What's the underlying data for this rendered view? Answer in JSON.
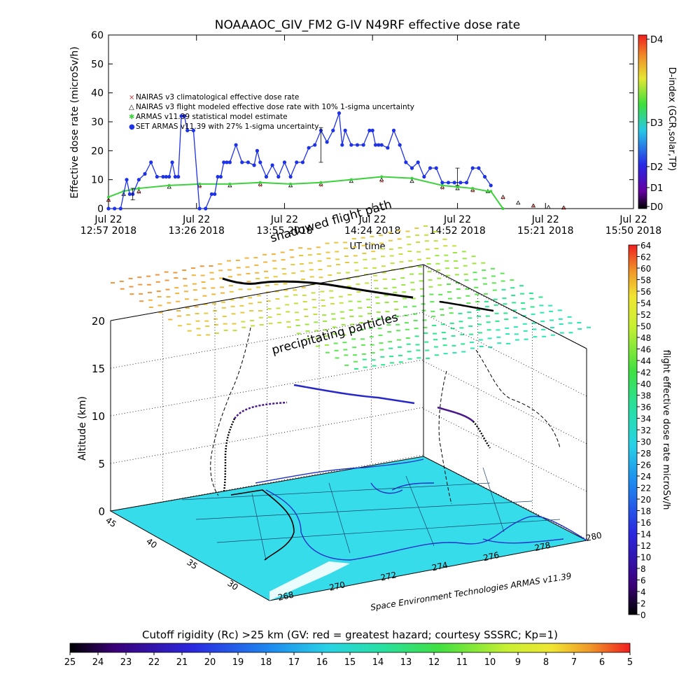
{
  "colors": {
    "nairas_clim": "#c83232",
    "nairas_model": "#000000",
    "armas_stat": "#3cd23c",
    "armas": "#1e32e6",
    "globe": "#37dceb"
  },
  "chart_data": [
    {
      "type": "line",
      "title": "NOAAAOC_GIV_FM2 G-IV   N49RF  effective dose rate",
      "ylabel": "Effective dose rate (microSv/h)",
      "xlabel": "UT time",
      "ylim": [
        0,
        60
      ],
      "yticks": [
        "0",
        "10",
        "20",
        "30",
        "40",
        "50",
        "60"
      ],
      "xlim_minutes": [
        0,
        173
      ],
      "xticks": [
        {
          "m": 0,
          "date": "Jul 22",
          "time": "12:57  2018"
        },
        {
          "m": 29,
          "date": "Jul 22",
          "time": "13:26  2018"
        },
        {
          "m": 58,
          "date": "Jul 22",
          "time": "13:55  2018"
        },
        {
          "m": 87,
          "date": "Jul 22",
          "time": "14:24  2018"
        },
        {
          "m": 115,
          "date": "Jul 22",
          "time": "14:52  2018"
        },
        {
          "m": 144,
          "date": "Jul 22",
          "time": "15:21  2018"
        },
        {
          "m": 173,
          "date": "Jul 22",
          "time": "15:50  2018"
        }
      ],
      "legend": [
        {
          "marker": "×",
          "text": "NAIRAS v3 climatological effective dose rate"
        },
        {
          "marker": "△",
          "text": "NAIRAS v3 flight modeled effective dose rate with 10% 1-sigma uncertainty"
        },
        {
          "marker": "✱",
          "text": "ARMAS v11.39 statistical model estimate"
        },
        {
          "marker": "●",
          "text": "SET ARMAS v11.39 with 27% 1-sigma uncertainty"
        }
      ],
      "right_axis": {
        "label": "D-index (GCR,solar,TP)",
        "ticks": [
          "D4",
          "D3",
          "D2",
          "D1",
          "D0"
        ]
      },
      "series": [
        {
          "name": "SET ARMAS v11.39 with 27% 1-sigma uncertainty",
          "x": [
            0,
            2,
            4,
            6,
            7,
            8,
            10,
            12,
            14,
            16,
            18,
            19,
            20,
            21,
            22,
            23,
            24,
            25,
            26,
            28,
            30,
            32,
            34,
            35,
            36,
            37,
            38,
            39,
            40,
            42,
            44,
            46,
            48,
            49,
            50,
            52,
            54,
            56,
            58,
            60,
            62,
            64,
            66,
            68,
            70,
            72,
            74,
            76,
            77,
            78,
            80,
            82,
            84,
            86,
            87,
            88,
            89,
            90,
            92,
            94,
            96,
            98,
            100,
            102,
            104,
            106,
            108,
            110,
            112,
            114,
            116,
            118,
            120,
            122,
            124,
            126
          ],
          "y": [
            0,
            0,
            0,
            10,
            5,
            5,
            10,
            12,
            16,
            11,
            11,
            11,
            11,
            16,
            11,
            11,
            32,
            32,
            27,
            27,
            0,
            0,
            5,
            5,
            11,
            11,
            16,
            16,
            16,
            22,
            16,
            16,
            15,
            20,
            16,
            11,
            15,
            11,
            16,
            11,
            16,
            16,
            21,
            22,
            27,
            23,
            27,
            33,
            22,
            27,
            22,
            22,
            22,
            27,
            27,
            22,
            22,
            22,
            21,
            27,
            22,
            16,
            14,
            16,
            11,
            14,
            14,
            9,
            9,
            9,
            9,
            9,
            14,
            14,
            11,
            8
          ]
        },
        {
          "name": "ARMAS v11.39 statistical model estimate",
          "x": [
            0,
            5,
            10,
            20,
            30,
            40,
            50,
            60,
            70,
            80,
            90,
            100,
            110,
            115,
            120,
            125,
            126,
            130
          ],
          "y": [
            4,
            6,
            7,
            8,
            8.5,
            8.5,
            9,
            8.5,
            9,
            10,
            11,
            10.5,
            8,
            7.5,
            7,
            6,
            6,
            0
          ]
        },
        {
          "name": "NAIRAS v3 flight modeled effective dose rate with 10% 1-sigma uncertainty",
          "x": [
            0,
            5,
            10,
            20,
            30,
            40,
            50,
            60,
            70,
            80,
            90,
            100,
            110,
            115,
            120,
            125,
            130,
            135,
            140,
            145,
            150
          ],
          "y": [
            3,
            5,
            6,
            7.5,
            8,
            8,
            8.5,
            8,
            8.5,
            9.5,
            10,
            9.5,
            7.5,
            7,
            6.5,
            6,
            4,
            2,
            1,
            0.5,
            0.3
          ]
        }
      ]
    },
    {
      "type": "3d-track",
      "zlabel": "Altitude (km)",
      "zticks": [
        "0",
        "5",
        "10",
        "15",
        "20"
      ],
      "lat_ticks": [
        "45",
        "40",
        "35",
        "30"
      ],
      "lon_ticks": [
        "268",
        "270",
        "272",
        "274",
        "276",
        "278",
        "280"
      ],
      "annotations": [
        "shadowed flight path",
        "precipitating particles"
      ],
      "credit": "Space Environment Technologies ARMAS v11.39",
      "colorbar": {
        "label": "flight effective dose rate microSv/h",
        "ticks": [
          "64",
          "62",
          "60",
          "58",
          "56",
          "54",
          "52",
          "50",
          "48",
          "46",
          "44",
          "42",
          "40",
          "38",
          "36",
          "34",
          "32",
          "30",
          "28",
          "26",
          "24",
          "22",
          "20",
          "18",
          "16",
          "14",
          "12",
          "10",
          "8",
          "6",
          "4",
          "2",
          "0"
        ]
      }
    },
    {
      "type": "colorbar",
      "title": "Cutoff rigidity (Rc) >25 km (GV: red = greatest hazard; courtesy SSSRC; Kp=1)",
      "ticks": [
        "25",
        "24",
        "23",
        "22",
        "21",
        "20",
        "19",
        "18",
        "17",
        "16",
        "15",
        "14",
        "13",
        "12",
        "11",
        "10",
        "9",
        "8",
        "7",
        "6",
        "5"
      ]
    }
  ]
}
